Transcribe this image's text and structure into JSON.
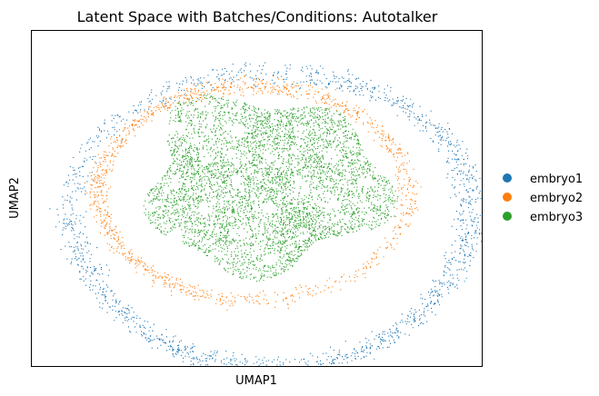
{
  "chart_data": {
    "type": "scatter",
    "title": "Latent Space with Batches/Conditions: Autotalker",
    "xlabel": "UMAP1",
    "ylabel": "UMAP2",
    "xticks": [],
    "yticks": [],
    "grid": false,
    "legend_position": "right",
    "legend": [
      {
        "name": "embryo1",
        "color": "#1f77b4"
      },
      {
        "name": "embryo2",
        "color": "#ff7f0e"
      },
      {
        "name": "embryo3",
        "color": "#2ca02c"
      }
    ],
    "series": [
      {
        "name": "embryo1",
        "color": "#1f77b4",
        "region": "outer ring, bottom and right side"
      },
      {
        "name": "embryo2",
        "color": "#ff7f0e",
        "region": "middle ring, top and left side"
      },
      {
        "name": "embryo3",
        "color": "#2ca02c",
        "region": "central core"
      }
    ]
  }
}
